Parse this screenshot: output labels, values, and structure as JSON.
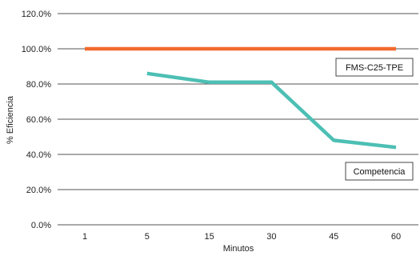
{
  "chart_data": {
    "type": "line",
    "categories": [
      "1",
      "5",
      "15",
      "30",
      "45",
      "60"
    ],
    "series": [
      {
        "name": "FMS-C25-TPE",
        "values": [
          100.0,
          100.0,
          100.0,
          100.0,
          100.0,
          100.0
        ],
        "color": "#f26a2e"
      },
      {
        "name": "Competencia",
        "values": [
          null,
          86.0,
          81.0,
          81.0,
          48.0,
          44.0
        ],
        "color": "#4dbfb4"
      }
    ],
    "y_ticks": [
      "0.0%",
      "20.0%",
      "40.0%",
      "60.0%",
      "80.0%",
      "100.0%",
      "120.0%"
    ],
    "ylim": [
      0,
      120
    ],
    "xlabel": "Minutos",
    "ylabel": "% Eficiencia",
    "grid": "horizontal"
  }
}
